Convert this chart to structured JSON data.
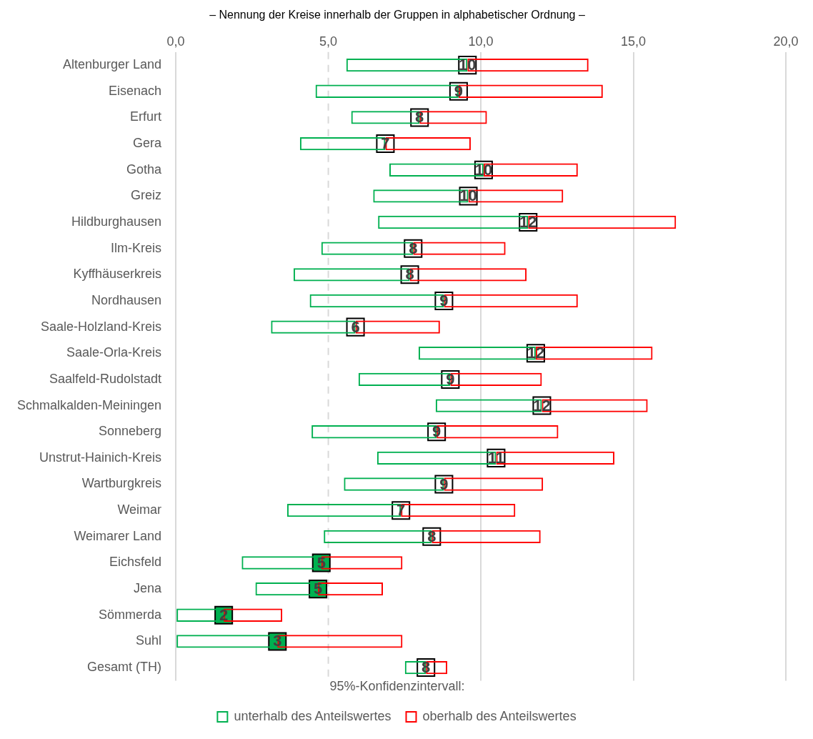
{
  "chart_data": {
    "type": "bar",
    "orientation": "horizontal",
    "title": "– Nennung der Kreise innerhalb der Gruppen in alphabetischer Ordnung –",
    "legend_title": "95%-Konfidenzintervall:",
    "categories": [
      "Altenburger Land",
      "Eisenach",
      "Erfurt",
      "Gera",
      "Gotha",
      "Greiz",
      "Hildburghausen",
      "Ilm-Kreis",
      "Kyffhäuserkreis",
      "Nordhausen",
      "Saale-Holzland-Kreis",
      "Saale-Orla-Kreis",
      "Saalfeld-Rudolstadt",
      "Schmalkalden-Meiningen",
      "Sonneberg",
      "Unstrut-Hainich-Kreis",
      "Wartburgkreis",
      "Weimar",
      "Weimarer Land",
      "Eichsfeld",
      "Jena",
      "Sömmerda",
      "Suhl",
      "Gesamt (TH)"
    ],
    "series": [
      {
        "name": "unterhalb des Anteilswertes",
        "color": "#00b050",
        "base": [
          5.59,
          4.58,
          5.75,
          4.07,
          7.0,
          6.47,
          6.63,
          4.77,
          3.86,
          4.39,
          3.12,
          7.96,
          5.99,
          8.52,
          4.45,
          6.6,
          5.51,
          3.65,
          4.85,
          2.16,
          2.61,
          0,
          0,
          7.51
        ],
        "values": [
          3.97,
          4.69,
          2.24,
          2.8,
          3.09,
          3.12,
          4.92,
          3.01,
          3.81,
          4.4,
          2.77,
          3.84,
          3.01,
          3.48,
          4.1,
          3.9,
          3.28,
          3.73,
          3.54,
          2.61,
          2.05,
          1.57,
          3.33,
          0.69
        ]
      },
      {
        "name": "oberhalb des Anteilswertes",
        "color": "#ff0000",
        "base": [
          9.56,
          9.27,
          7.99,
          6.87,
          10.09,
          9.59,
          11.55,
          7.78,
          7.67,
          8.79,
          5.89,
          11.8,
          9.0,
          12.0,
          8.55,
          10.5,
          8.79,
          7.38,
          8.39,
          4.77,
          4.66,
          1.57,
          3.33,
          8.2
        ],
        "values": [
          3.97,
          4.73,
          2.21,
          2.8,
          3.09,
          3.11,
          4.85,
          3.03,
          3.83,
          4.39,
          2.77,
          3.83,
          3.0,
          3.47,
          3.99,
          3.88,
          3.25,
          3.75,
          3.57,
          2.66,
          2.13,
          1.92,
          4.1,
          0.7
        ]
      },
      {
        "type": "scatter",
        "marker": "square",
        "values": [
          9.56,
          9.27,
          7.99,
          6.87,
          10.09,
          9.59,
          11.55,
          7.78,
          7.67,
          8.79,
          5.89,
          11.8,
          9.0,
          12.0,
          8.55,
          10.5,
          8.79,
          7.38,
          8.39,
          4.77,
          4.66,
          1.57,
          3.33,
          8.2
        ],
        "colors": [
          "#ffffff",
          "#ffffff",
          "#ffffff",
          "#ffffff",
          "#ffffff",
          "#ffffff",
          "#ffffff",
          "#ffffff",
          "#ffffff",
          "#ffffff",
          "#ffffff",
          "#ffffff",
          "#ffffff",
          "#ffffff",
          "#ffffff",
          "#ffffff",
          "#ffffff",
          "#ffffff",
          "#ffffff",
          "#00b050",
          "#00b050",
          "#00b050",
          "#00b050",
          "#ffffff"
        ],
        "value_labels": [
          "10",
          "9",
          "8",
          "7",
          "10",
          "10",
          "12",
          "8",
          "8",
          "9",
          "6",
          "12",
          "9",
          "12",
          "9",
          "11",
          "9",
          "7",
          "8",
          "5",
          "5",
          "2",
          "3",
          "8"
        ]
      }
    ],
    "xlim": [
      0,
      20
    ],
    "xticks": [
      {
        "value": 0,
        "label": "0,0"
      },
      {
        "value": 5,
        "label": "5,0"
      },
      {
        "value": 10,
        "label": "10,0"
      },
      {
        "value": 15,
        "label": "15,0"
      },
      {
        "value": 20,
        "label": "20,0"
      }
    ],
    "grid": "x",
    "ref_lines": [
      {
        "axis": "x",
        "value": 5,
        "color": "#d9d9d9",
        "line_style": "dashed"
      }
    ],
    "legend": "bottom"
  }
}
